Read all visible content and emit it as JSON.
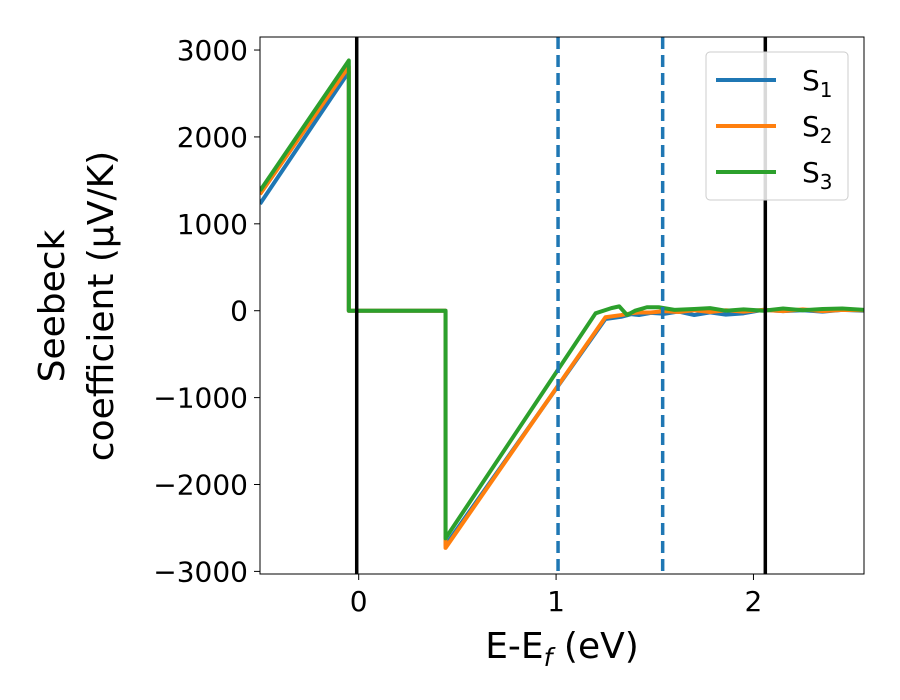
{
  "chart_data": {
    "type": "line",
    "title": "",
    "xlabel": {
      "base": "E-E",
      "sub": "f",
      "unit": " (eV)"
    },
    "ylabel": {
      "line1": "Seebeck",
      "line2": "coefficient  (μV/K)"
    },
    "xlim": [
      -0.5,
      2.56
    ],
    "ylim": [
      -3030,
      3150
    ],
    "xticks": [
      0,
      1,
      2
    ],
    "xtick_labels": [
      "0",
      "1",
      "2"
    ],
    "yticks": [
      -3000,
      -2000,
      -1000,
      0,
      1000,
      2000,
      3000
    ],
    "ytick_labels": [
      "−3000",
      "−2000",
      "−1000",
      "0",
      "1000",
      "2000",
      "3000"
    ],
    "grid": false,
    "legend_position": "top-right",
    "series": [
      {
        "name": "S",
        "name_sub": "1",
        "color": "#1f77b4",
        "x": [
          -0.5,
          -0.05,
          -0.05,
          0.44,
          0.44,
          1.25,
          1.33,
          1.38,
          1.42,
          1.48,
          1.55,
          1.62,
          1.7,
          1.78,
          1.86,
          1.95,
          2.05,
          2.15,
          2.25,
          2.35,
          2.45,
          2.56
        ],
        "y": [
          1230,
          2750,
          0,
          0,
          -2700,
          -95,
          -70,
          -40,
          -50,
          -25,
          -35,
          -10,
          -50,
          -20,
          -45,
          -30,
          10,
          -5,
          5,
          -10,
          10,
          0
        ]
      },
      {
        "name": "S",
        "name_sub": "2",
        "color": "#ff7f0e",
        "x": [
          -0.5,
          -0.05,
          -0.05,
          0.44,
          0.44,
          1.25,
          1.33,
          1.38,
          1.42,
          1.48,
          1.55,
          1.62,
          1.7,
          1.78,
          1.86,
          1.95,
          2.05,
          2.15,
          2.25,
          2.35,
          2.45,
          2.56
        ],
        "y": [
          1340,
          2810,
          0,
          0,
          -2730,
          -75,
          -50,
          -30,
          -20,
          -20,
          -5,
          -15,
          5,
          -15,
          5,
          -10,
          10,
          -5,
          15,
          -5,
          10,
          5
        ]
      },
      {
        "name": "S",
        "name_sub": "3",
        "color": "#2ca02c",
        "x": [
          -0.5,
          -0.05,
          -0.05,
          0.44,
          0.44,
          1.2,
          1.28,
          1.32,
          1.36,
          1.4,
          1.46,
          1.52,
          1.6,
          1.7,
          1.78,
          1.86,
          1.95,
          2.05,
          2.15,
          2.25,
          2.35,
          2.45,
          2.56
        ],
        "y": [
          1380,
          2880,
          0,
          0,
          -2620,
          -30,
          30,
          50,
          -50,
          0,
          40,
          40,
          10,
          20,
          30,
          0,
          15,
          0,
          25,
          5,
          20,
          25,
          10
        ]
      }
    ],
    "vlines": [
      {
        "x": -0.01,
        "style": "solid",
        "color": "#000000"
      },
      {
        "x": 2.06,
        "style": "solid",
        "color": "#000000"
      },
      {
        "x": 1.01,
        "style": "dashed",
        "color": "#1f77b4"
      },
      {
        "x": 1.54,
        "style": "dashed",
        "color": "#1f77b4"
      }
    ]
  }
}
